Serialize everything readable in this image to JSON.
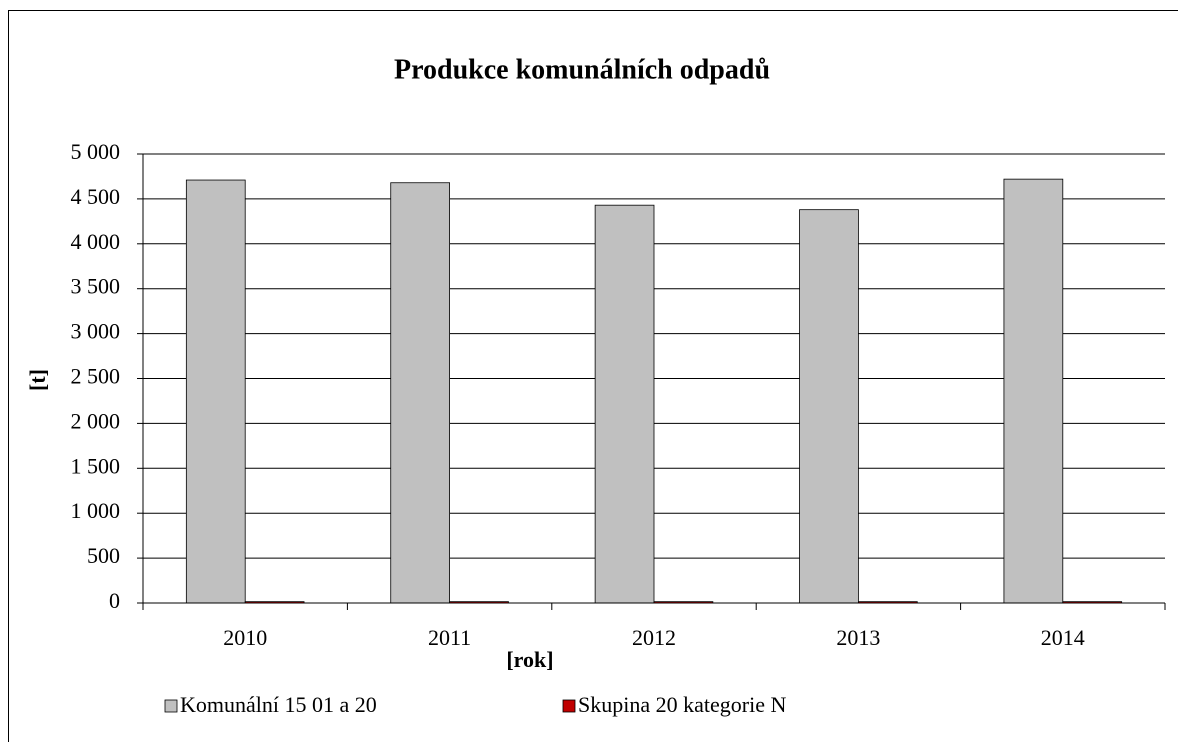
{
  "chart_data": {
    "type": "bar",
    "title": "Produkce komunálních odpadů",
    "y_label": "[t]",
    "x_label": "[rok]",
    "categories": [
      "2010",
      "2011",
      "2012",
      "2013",
      "2014"
    ],
    "series": [
      {
        "name": "Komunální 15 01 a 20",
        "color": "#c0c0c0",
        "values": [
          4710,
          4680,
          4430,
          4380,
          4720
        ]
      },
      {
        "name": "Skupina 20 kategorie N",
        "color": "#c00000",
        "values": [
          15,
          15,
          15,
          15,
          15
        ]
      }
    ],
    "ylim": [
      0,
      5000
    ],
    "yticks": [
      0,
      500,
      {
        "value": 1000,
        "label": "1 000"
      },
      {
        "value": 1500,
        "label": "1 500"
      },
      {
        "value": 2000,
        "label": "2 000"
      },
      {
        "value": 2500,
        "label": "2 500"
      },
      {
        "value": 3000,
        "label": "3 000"
      },
      {
        "value": 3500,
        "label": "3 500"
      },
      {
        "value": 4000,
        "label": "4 000"
      },
      {
        "value": 4500,
        "label": "4 500"
      },
      {
        "value": 5000,
        "label": "5 000"
      }
    ],
    "grid": true,
    "legend": "bottom"
  }
}
